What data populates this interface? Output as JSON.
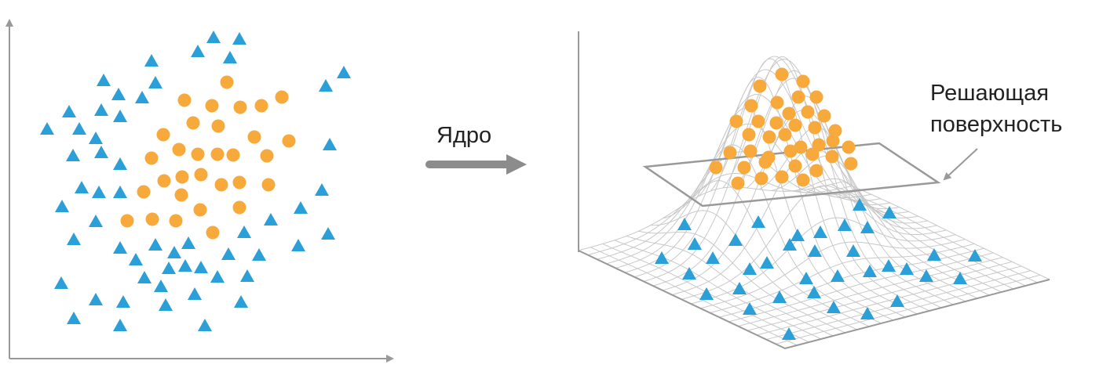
{
  "diagram": {
    "kernel_label": "Ядро",
    "surface_label_line1": "Решающая",
    "surface_label_line2": "поверхность",
    "colors": {
      "class_a_triangles": "#2a9fd8",
      "class_b_circles": "#f8a93b",
      "axes": "#999999",
      "mesh": "#c8c8c8",
      "arrow": "#8c8c8c"
    },
    "icons": {
      "class_a": "triangle-marker",
      "class_b": "circle-marker"
    }
  }
}
